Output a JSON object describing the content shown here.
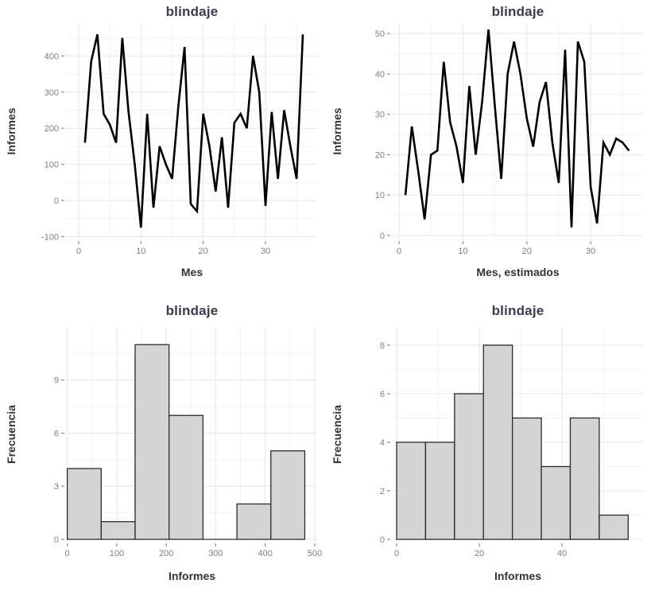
{
  "page": {
    "background": "#ffffff"
  },
  "colors": {
    "line": "#000000",
    "bar_fill": "#d4d4d4",
    "bar_stroke": "#2b2b2b",
    "grid_major": "#e6e6e6",
    "grid_minor": "#f2f2f2",
    "tick_mark": "#8d8d8d",
    "tick_label": "#7f7f7f",
    "axis_title": "#333333",
    "title": "#3b3b4f"
  },
  "chart_data": [
    {
      "type": "line",
      "title": "blindaje",
      "xlabel": "Mes",
      "ylabel": "Informes",
      "x_range": [
        1,
        36
      ],
      "values": [
        160,
        385,
        460,
        240,
        210,
        160,
        450,
        245,
        100,
        -75,
        240,
        -20,
        150,
        100,
        60,
        260,
        425,
        -10,
        -30,
        240,
        150,
        25,
        175,
        -20,
        215,
        240,
        200,
        400,
        300,
        -15,
        245,
        60,
        250,
        150,
        60,
        460
      ],
      "xticks": [
        0,
        10,
        20,
        30
      ],
      "yticks": [
        -100,
        0,
        100,
        200,
        300,
        400
      ],
      "xlim": [
        -1.92,
        38.3
      ],
      "ylim": [
        -105.7,
        489
      ],
      "grid": true,
      "legend": "none"
    },
    {
      "type": "line",
      "title": "blindaje",
      "xlabel": "Mes, estimados",
      "ylabel": "Informes",
      "x_range": [
        1,
        36
      ],
      "values": [
        10,
        27,
        16,
        4,
        20,
        21,
        43,
        28,
        22,
        13,
        37,
        20,
        33,
        51,
        32,
        14,
        40,
        48,
        40,
        29,
        22,
        33,
        38,
        23,
        13,
        46,
        2,
        48,
        43,
        12,
        3,
        23,
        20,
        24,
        23,
        21
      ],
      "xticks": [
        0,
        10,
        20,
        30
      ],
      "yticks": [
        0,
        10,
        20,
        30,
        40,
        50
      ],
      "xlim": [
        -1.0,
        38.2
      ],
      "ylim": [
        -0.79,
        52.4
      ],
      "grid": true,
      "legend": "none"
    },
    {
      "type": "histogram",
      "title": "blindaje",
      "xlabel": "Informes",
      "ylabel": "Frecuencia",
      "bin_edges": [
        0,
        68.6,
        137.1,
        205.7,
        274.3,
        342.9,
        411.4,
        480
      ],
      "counts": [
        4,
        1,
        11,
        7,
        0,
        2,
        5
      ],
      "xticks": [
        0,
        100,
        200,
        300,
        400,
        500
      ],
      "yticks": [
        0,
        3,
        6,
        9
      ],
      "xlim": [
        -1,
        505
      ],
      "ylim": [
        -0.09,
        12.0
      ],
      "grid": true,
      "legend": "none"
    },
    {
      "type": "histogram",
      "title": "blindaje",
      "xlabel": "Informes",
      "ylabel": "Frecuencia",
      "bin_edges": [
        0,
        7,
        14,
        21,
        28,
        35,
        42,
        49,
        56
      ],
      "counts": [
        4,
        4,
        6,
        8,
        5,
        3,
        5,
        1
      ],
      "xticks": [
        0,
        20,
        40
      ],
      "yticks": [
        0,
        2,
        4,
        6,
        8
      ],
      "xlim": [
        -0.96,
        59.6
      ],
      "ylim": [
        -0.064,
        8.75
      ],
      "grid": true,
      "legend": "none"
    }
  ]
}
